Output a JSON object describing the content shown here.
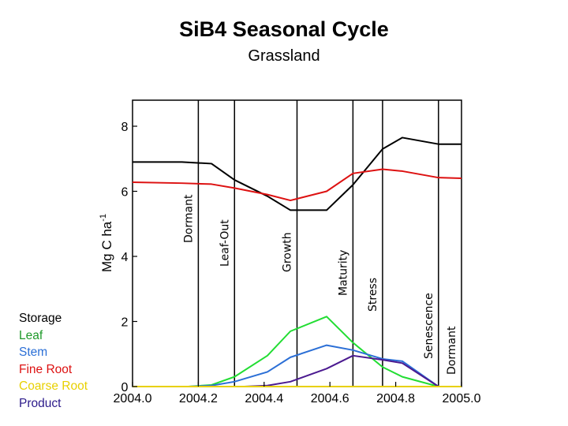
{
  "chart_data": {
    "type": "line",
    "title": "SiB4 Seasonal Cycle",
    "subtitle": "Grassland",
    "ylabel_main": "Mg C ha",
    "ylabel_sup": "-1",
    "xlim": [
      2004.0,
      2005.0
    ],
    "ylim": [
      0,
      8.8
    ],
    "xticks": [
      "2004.0",
      "2004.2",
      "2004.4",
      "2004.6",
      "2004.8",
      "2005.0"
    ],
    "xtick_values": [
      2004.0,
      2004.2,
      2004.4,
      2004.6,
      2004.8,
      2005.0
    ],
    "yticks": [
      "0",
      "2",
      "4",
      "6",
      "8"
    ],
    "ytick_values": [
      0,
      2,
      4,
      6,
      8
    ],
    "phases": [
      {
        "label": "Dormant",
        "start": 2004.0,
        "end": 2004.2
      },
      {
        "label": "Leaf-Out",
        "start": 2004.2,
        "end": 2004.31
      },
      {
        "label": "Growth",
        "start": 2004.31,
        "end": 2004.5
      },
      {
        "label": "Maturity",
        "start": 2004.5,
        "end": 2004.67
      },
      {
        "label": "Stress",
        "start": 2004.67,
        "end": 2004.76
      },
      {
        "label": "Senescence",
        "start": 2004.76,
        "end": 2004.93
      },
      {
        "label": "Dormant",
        "start": 2004.93,
        "end": 2005.0
      }
    ],
    "series": [
      {
        "name": "Storage",
        "color": "#000000",
        "x": [
          2004.0,
          2004.15,
          2004.24,
          2004.31,
          2004.41,
          2004.48,
          2004.59,
          2004.67,
          2004.76,
          2004.82,
          2004.93,
          2005.0
        ],
        "y": [
          6.9,
          6.9,
          6.85,
          6.35,
          5.85,
          5.42,
          5.42,
          6.2,
          7.3,
          7.65,
          7.45,
          7.45
        ]
      },
      {
        "name": "Fine Root",
        "color": "#dd1111",
        "x": [
          2004.0,
          2004.15,
          2004.24,
          2004.31,
          2004.41,
          2004.48,
          2004.59,
          2004.67,
          2004.76,
          2004.82,
          2004.93,
          2005.0
        ],
        "y": [
          6.28,
          6.25,
          6.22,
          6.1,
          5.9,
          5.72,
          6.0,
          6.55,
          6.68,
          6.62,
          6.42,
          6.4
        ]
      },
      {
        "name": "Leaf",
        "color": "#22dd33",
        "x": [
          2004.0,
          2004.17,
          2004.24,
          2004.31,
          2004.41,
          2004.48,
          2004.59,
          2004.67,
          2004.76,
          2004.82,
          2004.93,
          2005.0
        ],
        "y": [
          0,
          0,
          0.05,
          0.3,
          0.95,
          1.7,
          2.15,
          1.35,
          0.6,
          0.3,
          0,
          0
        ]
      },
      {
        "name": "Stem",
        "color": "#2b6fd6",
        "x": [
          2004.0,
          2004.17,
          2004.24,
          2004.31,
          2004.41,
          2004.48,
          2004.59,
          2004.67,
          2004.76,
          2004.82,
          2004.93,
          2005.0
        ],
        "y": [
          0,
          0,
          0.03,
          0.15,
          0.45,
          0.9,
          1.27,
          1.12,
          0.85,
          0.78,
          0,
          0
        ]
      },
      {
        "name": "Product",
        "color": "#4b1a90",
        "x": [
          2004.0,
          2004.24,
          2004.34,
          2004.41,
          2004.48,
          2004.59,
          2004.67,
          2004.76,
          2004.82,
          2004.93,
          2005.0
        ],
        "y": [
          0,
          0,
          0,
          0.03,
          0.15,
          0.55,
          0.95,
          0.82,
          0.72,
          0,
          0
        ]
      },
      {
        "name": "Coarse Root",
        "color": "#e8d000",
        "x": [
          2004.0,
          2005.0
        ],
        "y": [
          0,
          0
        ]
      }
    ],
    "legend": [
      {
        "label": "Storage",
        "color": "#000000"
      },
      {
        "label": "Leaf",
        "color": "#1f9a2a"
      },
      {
        "label": "Stem",
        "color": "#2b6fd6"
      },
      {
        "label": "Fine Root",
        "color": "#dd1111"
      },
      {
        "label": "Coarse Root",
        "color": "#e8d000"
      },
      {
        "label": "Product",
        "color": "#2b1a8a"
      }
    ],
    "legend_position": "bottom-left, outside plot",
    "grid": false
  }
}
